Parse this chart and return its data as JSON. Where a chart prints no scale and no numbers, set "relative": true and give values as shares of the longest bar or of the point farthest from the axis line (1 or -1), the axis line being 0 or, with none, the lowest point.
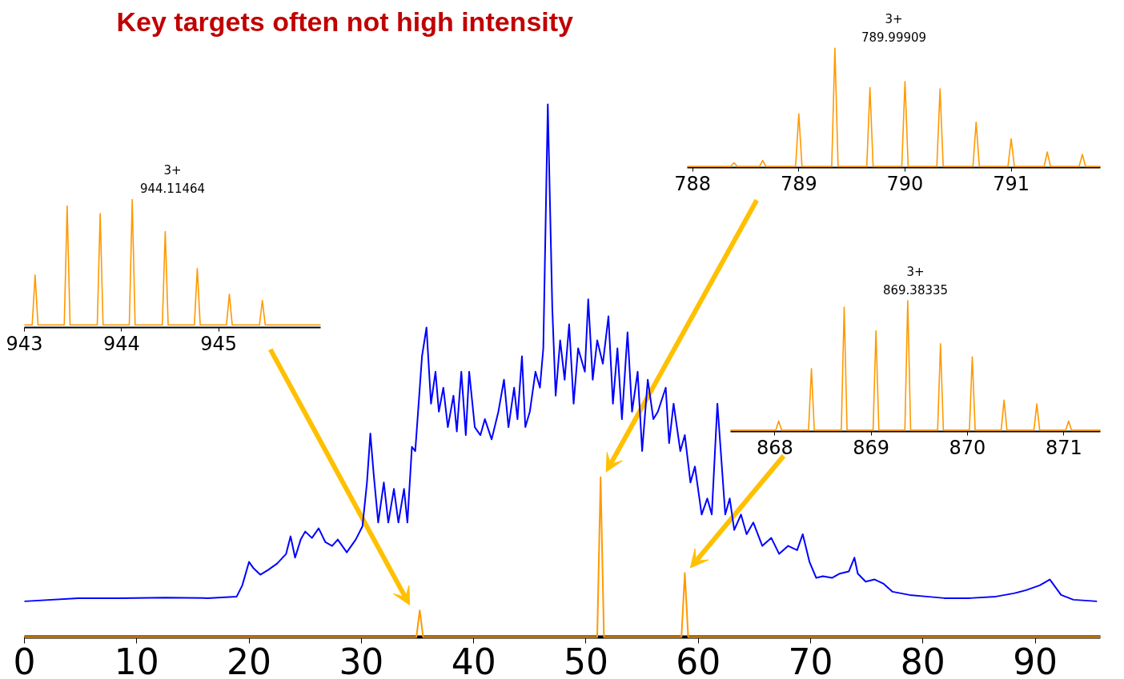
{
  "chart_data": [
    {
      "type": "line",
      "title": "Key targets often not high intensity",
      "relative": true,
      "xlim": [
        0,
        95.8
      ],
      "xticks": [
        0,
        10,
        20,
        30,
        40,
        50,
        60,
        70,
        80,
        90
      ],
      "grid": false,
      "series": [
        {
          "color": "#0000ff",
          "x": [
            0,
            4.8,
            8.6,
            12.5,
            16.3,
            18.9,
            19.4,
            20.0,
            20.4,
            21.0,
            21.7,
            22.5,
            23.3,
            23.7,
            24.1,
            24.6,
            25.0,
            25.6,
            26.2,
            26.8,
            27.4,
            27.9,
            28.7,
            29.5,
            30.1,
            30.5,
            30.8,
            31.1,
            31.5,
            32.0,
            32.4,
            32.9,
            33.3,
            33.8,
            34.1,
            34.5,
            34.8,
            35.4,
            35.8,
            36.2,
            36.6,
            36.9,
            37.3,
            37.7,
            38.2,
            38.5,
            38.9,
            39.3,
            39.6,
            40.1,
            40.6,
            41.0,
            41.6,
            42.2,
            42.7,
            43.1,
            43.6,
            43.9,
            44.3,
            44.6,
            45.0,
            45.5,
            45.9,
            46.2,
            46.6,
            47.0,
            47.3,
            47.7,
            48.1,
            48.5,
            48.9,
            49.3,
            49.9,
            50.2,
            50.6,
            51.0,
            51.5,
            52.0,
            52.4,
            52.8,
            53.2,
            53.7,
            54.1,
            54.6,
            55.0,
            55.5,
            56.0,
            56.4,
            57.1,
            57.4,
            57.8,
            58.4,
            58.8,
            59.3,
            59.7,
            60.3,
            60.8,
            61.2,
            61.7,
            62.0,
            62.4,
            62.8,
            63.2,
            63.8,
            64.3,
            64.9,
            65.7,
            66.5,
            67.2,
            68.0,
            68.8,
            69.3,
            69.9,
            70.5,
            71.1,
            71.9,
            72.6,
            73.4,
            73.9,
            74.2,
            74.9,
            75.7,
            76.5,
            77.3,
            78.8,
            80.3,
            81.9,
            84.2,
            86.5,
            88.1,
            89.2,
            90.4,
            91.3,
            92.3,
            93.4,
            95.5
          ],
          "values": [
            0.067,
            0.073,
            0.073,
            0.074,
            0.073,
            0.076,
            0.097,
            0.141,
            0.129,
            0.117,
            0.126,
            0.138,
            0.156,
            0.189,
            0.149,
            0.183,
            0.198,
            0.186,
            0.204,
            0.178,
            0.171,
            0.183,
            0.159,
            0.183,
            0.208,
            0.29,
            0.382,
            0.305,
            0.215,
            0.29,
            0.215,
            0.278,
            0.215,
            0.278,
            0.215,
            0.357,
            0.349,
            0.527,
            0.581,
            0.438,
            0.498,
            0.423,
            0.468,
            0.394,
            0.453,
            0.386,
            0.498,
            0.379,
            0.498,
            0.394,
            0.379,
            0.409,
            0.371,
            0.423,
            0.483,
            0.394,
            0.468,
            0.409,
            0.527,
            0.394,
            0.423,
            0.498,
            0.468,
            0.542,
            1,
            0.617,
            0.453,
            0.557,
            0.483,
            0.587,
            0.438,
            0.542,
            0.498,
            0.634,
            0.483,
            0.557,
            0.513,
            0.602,
            0.438,
            0.542,
            0.409,
            0.572,
            0.423,
            0.498,
            0.349,
            0.483,
            0.409,
            0.423,
            0.468,
            0.364,
            0.438,
            0.349,
            0.379,
            0.29,
            0.32,
            0.23,
            0.26,
            0.23,
            0.438,
            0.349,
            0.23,
            0.26,
            0.201,
            0.23,
            0.193,
            0.215,
            0.171,
            0.186,
            0.156,
            0.171,
            0.163,
            0.193,
            0.141,
            0.111,
            0.114,
            0.111,
            0.119,
            0.123,
            0.149,
            0.119,
            0.104,
            0.108,
            0.1,
            0.085,
            0.079,
            0.076,
            0.073,
            0.073,
            0.076,
            0.082,
            0.088,
            0.097,
            0.108,
            0.079,
            0.07,
            0.067
          ]
        },
        {
          "color": "#ff9900",
          "x": [
            0,
            34.9,
            35.2,
            35.5,
            51.0,
            51.3,
            51.6,
            58.5,
            58.8,
            59.1,
            95.8
          ],
          "values": [
            0,
            0,
            0.05,
            0,
            0,
            0.3,
            0,
            0,
            0.12,
            0,
            0
          ]
        }
      ]
    },
    {
      "type": "line",
      "relative": true,
      "xlim": [
        943.0,
        946.05
      ],
      "xticks": [
        943,
        944,
        945
      ],
      "grid": false,
      "annotations": [
        "3+\n944.11464"
      ],
      "series": [
        {
          "color": "#ff9900",
          "x": [
            943.0,
            943.08,
            943.11,
            943.14,
            943.41,
            943.44,
            943.47,
            943.75,
            943.78,
            943.81,
            944.08,
            944.11,
            944.14,
            944.42,
            944.45,
            944.48,
            944.75,
            944.78,
            944.81,
            945.08,
            945.11,
            945.14,
            945.42,
            945.45,
            945.48,
            946.05
          ],
          "values": [
            0.02,
            0.02,
            0.41,
            0.02,
            0.02,
            0.95,
            0.02,
            0.02,
            0.89,
            0.02,
            0.02,
            1,
            0.02,
            0.02,
            0.75,
            0.02,
            0.02,
            0.46,
            0.02,
            0.02,
            0.26,
            0.02,
            0.02,
            0.21,
            0.02,
            0.02
          ]
        }
      ]
    },
    {
      "type": "line",
      "relative": true,
      "xlim": [
        787.95,
        791.84
      ],
      "xticks": [
        788,
        789,
        790,
        791
      ],
      "grid": false,
      "annotations": [
        "3+\n789.99909"
      ],
      "series": [
        {
          "color": "#ff9900",
          "x": [
            787.95,
            788.36,
            788.39,
            788.42,
            788.63,
            788.66,
            788.69,
            788.97,
            789.0,
            789.03,
            789.31,
            789.34,
            789.37,
            789.64,
            789.67,
            789.7,
            789.97,
            790.0,
            790.03,
            790.3,
            790.33,
            790.36,
            790.64,
            790.67,
            790.7,
            790.97,
            791.0,
            791.03,
            791.31,
            791.34,
            791.37,
            791.64,
            791.67,
            791.7,
            791.84
          ],
          "values": [
            0.01,
            0.01,
            0.04,
            0.01,
            0.01,
            0.06,
            0.01,
            0.01,
            0.45,
            0.01,
            0.01,
            1,
            0.01,
            0.01,
            0.67,
            0.01,
            0.01,
            0.72,
            0.01,
            0.01,
            0.66,
            0.01,
            0.01,
            0.38,
            0.01,
            0.01,
            0.24,
            0.01,
            0.01,
            0.13,
            0.01,
            0.01,
            0.11,
            0.01,
            0.01
          ]
        }
      ]
    },
    {
      "type": "line",
      "relative": true,
      "xlim": [
        867.54,
        871.38
      ],
      "xticks": [
        868,
        869,
        870,
        871
      ],
      "grid": false,
      "annotations": [
        "3+\n869.38335"
      ],
      "series": [
        {
          "color": "#ff9900",
          "x": [
            867.54,
            868.01,
            868.04,
            868.07,
            868.35,
            868.38,
            868.41,
            868.69,
            868.72,
            868.75,
            869.02,
            869.05,
            869.08,
            869.35,
            869.38,
            869.41,
            869.69,
            869.72,
            869.75,
            870.02,
            870.05,
            870.08,
            870.35,
            870.38,
            870.41,
            870.69,
            870.72,
            870.75,
            871.02,
            871.05,
            871.08,
            871.38
          ],
          "values": [
            0.01,
            0.01,
            0.08,
            0.01,
            0.01,
            0.48,
            0.01,
            0.01,
            0.95,
            0.01,
            0.01,
            0.77,
            0.01,
            0.01,
            1,
            0.01,
            0.01,
            0.67,
            0.01,
            0.01,
            0.57,
            0.01,
            0.01,
            0.24,
            0.01,
            0.01,
            0.21,
            0.01,
            0.01,
            0.08,
            0.01,
            0.01
          ]
        }
      ]
    }
  ]
}
